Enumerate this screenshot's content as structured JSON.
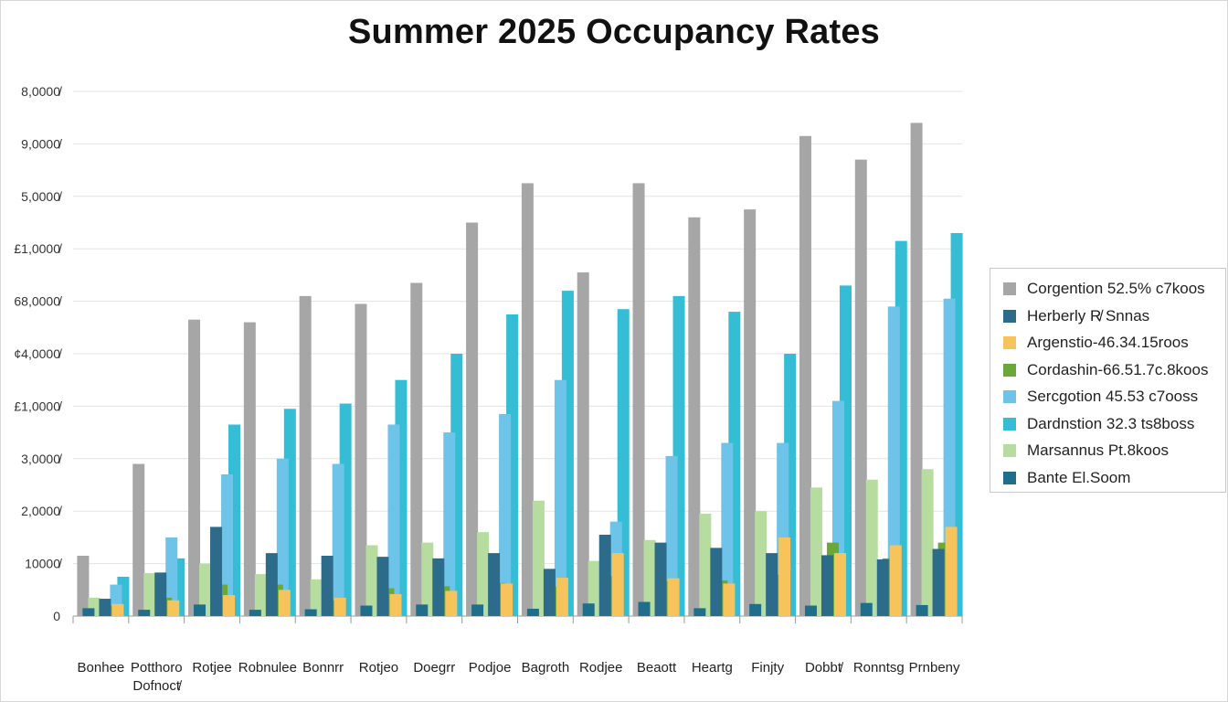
{
  "chart_data": {
    "type": "bar",
    "title": "Summer 2025 Occupancy Rates",
    "xlabel": "",
    "ylabel": "",
    "ylim": [
      0,
      10000
    ],
    "yticks": [
      "0",
      "10000̸",
      "2,0000̸",
      "3,0000̸",
      "£1,0000̸",
      "¢4,0000̸",
      "68,0000̸",
      "£1,0000̸",
      "5,0000̸",
      "9,0000̸",
      "8,0000̸"
    ],
    "grid": true,
    "legend_position": "right",
    "categories": [
      [
        "Bonhee"
      ],
      [
        "Potthoro",
        "Dofnoct̸"
      ],
      [
        "Rotjee"
      ],
      [
        "Robnulee"
      ],
      [
        "Bonnrr"
      ],
      [
        "Rotjeo"
      ],
      [
        "Doegrr"
      ],
      [
        "Podjoe"
      ],
      [
        "Bagroth"
      ],
      [
        "Rodjee"
      ],
      [
        "Beaott"
      ],
      [
        "Heartg"
      ],
      [
        "Finjty"
      ],
      [
        "Dobbt̸"
      ],
      [
        "Ronntsg"
      ],
      [
        "Prnbeny"
      ]
    ],
    "series": [
      {
        "name": "Corgention 52.5% c7koos",
        "color": "#a6a6a6",
        "values": [
          1150,
          2900,
          5650,
          5600,
          6100,
          5950,
          6350,
          7500,
          8250,
          6550,
          8250,
          7600,
          7750,
          9150,
          8700,
          9400
        ]
      },
      {
        "name": "Herberly R̸ Snnas",
        "color": "#2d6b8a",
        "values": [
          330,
          830,
          1700,
          1200,
          1150,
          1130,
          1100,
          1200,
          900,
          1550,
          1400,
          1300,
          1200,
          1160,
          1080,
          1280
        ]
      },
      {
        "name": "Argenstio-46.34.15roos",
        "color": "#f6c45a",
        "values": [
          230,
          300,
          400,
          500,
          350,
          420,
          480,
          620,
          730,
          1200,
          720,
          620,
          1500,
          1200,
          1350,
          1700
        ]
      },
      {
        "name": "Cordashin-66.51.7c.8koos",
        "color": "#6aa83a",
        "values": [
          200,
          350,
          600,
          600,
          300,
          530,
          570,
          630,
          560,
          760,
          660,
          680,
          790,
          1400,
          1100,
          1400
        ]
      },
      {
        "name": "Sercgotion 45.53 c7ooss",
        "color": "#6ec3e8",
        "values": [
          600,
          1500,
          2700,
          3000,
          2900,
          3650,
          3500,
          3850,
          4500,
          1800,
          3050,
          3300,
          3300,
          4100,
          5900,
          6050
        ]
      },
      {
        "name": "Dardnstion 32.3 ts8boss",
        "color": "#35bdd6",
        "values": [
          750,
          1100,
          3650,
          3950,
          4050,
          4500,
          5000,
          5750,
          6200,
          5850,
          6100,
          5800,
          5000,
          6300,
          7150,
          7300
        ]
      },
      {
        "name": "Marsannus Pt.8koos",
        "color": "#b7dca0",
        "values": [
          350,
          820,
          1000,
          800,
          700,
          1350,
          1400,
          1600,
          2200,
          1050,
          1450,
          1950,
          2000,
          2450,
          2600,
          2800
        ]
      },
      {
        "name": "Bante El.Soom",
        "color": "#1f6e8c",
        "values": [
          150,
          120,
          220,
          120,
          130,
          200,
          220,
          220,
          140,
          240,
          270,
          150,
          230,
          200,
          250,
          210
        ]
      }
    ]
  }
}
